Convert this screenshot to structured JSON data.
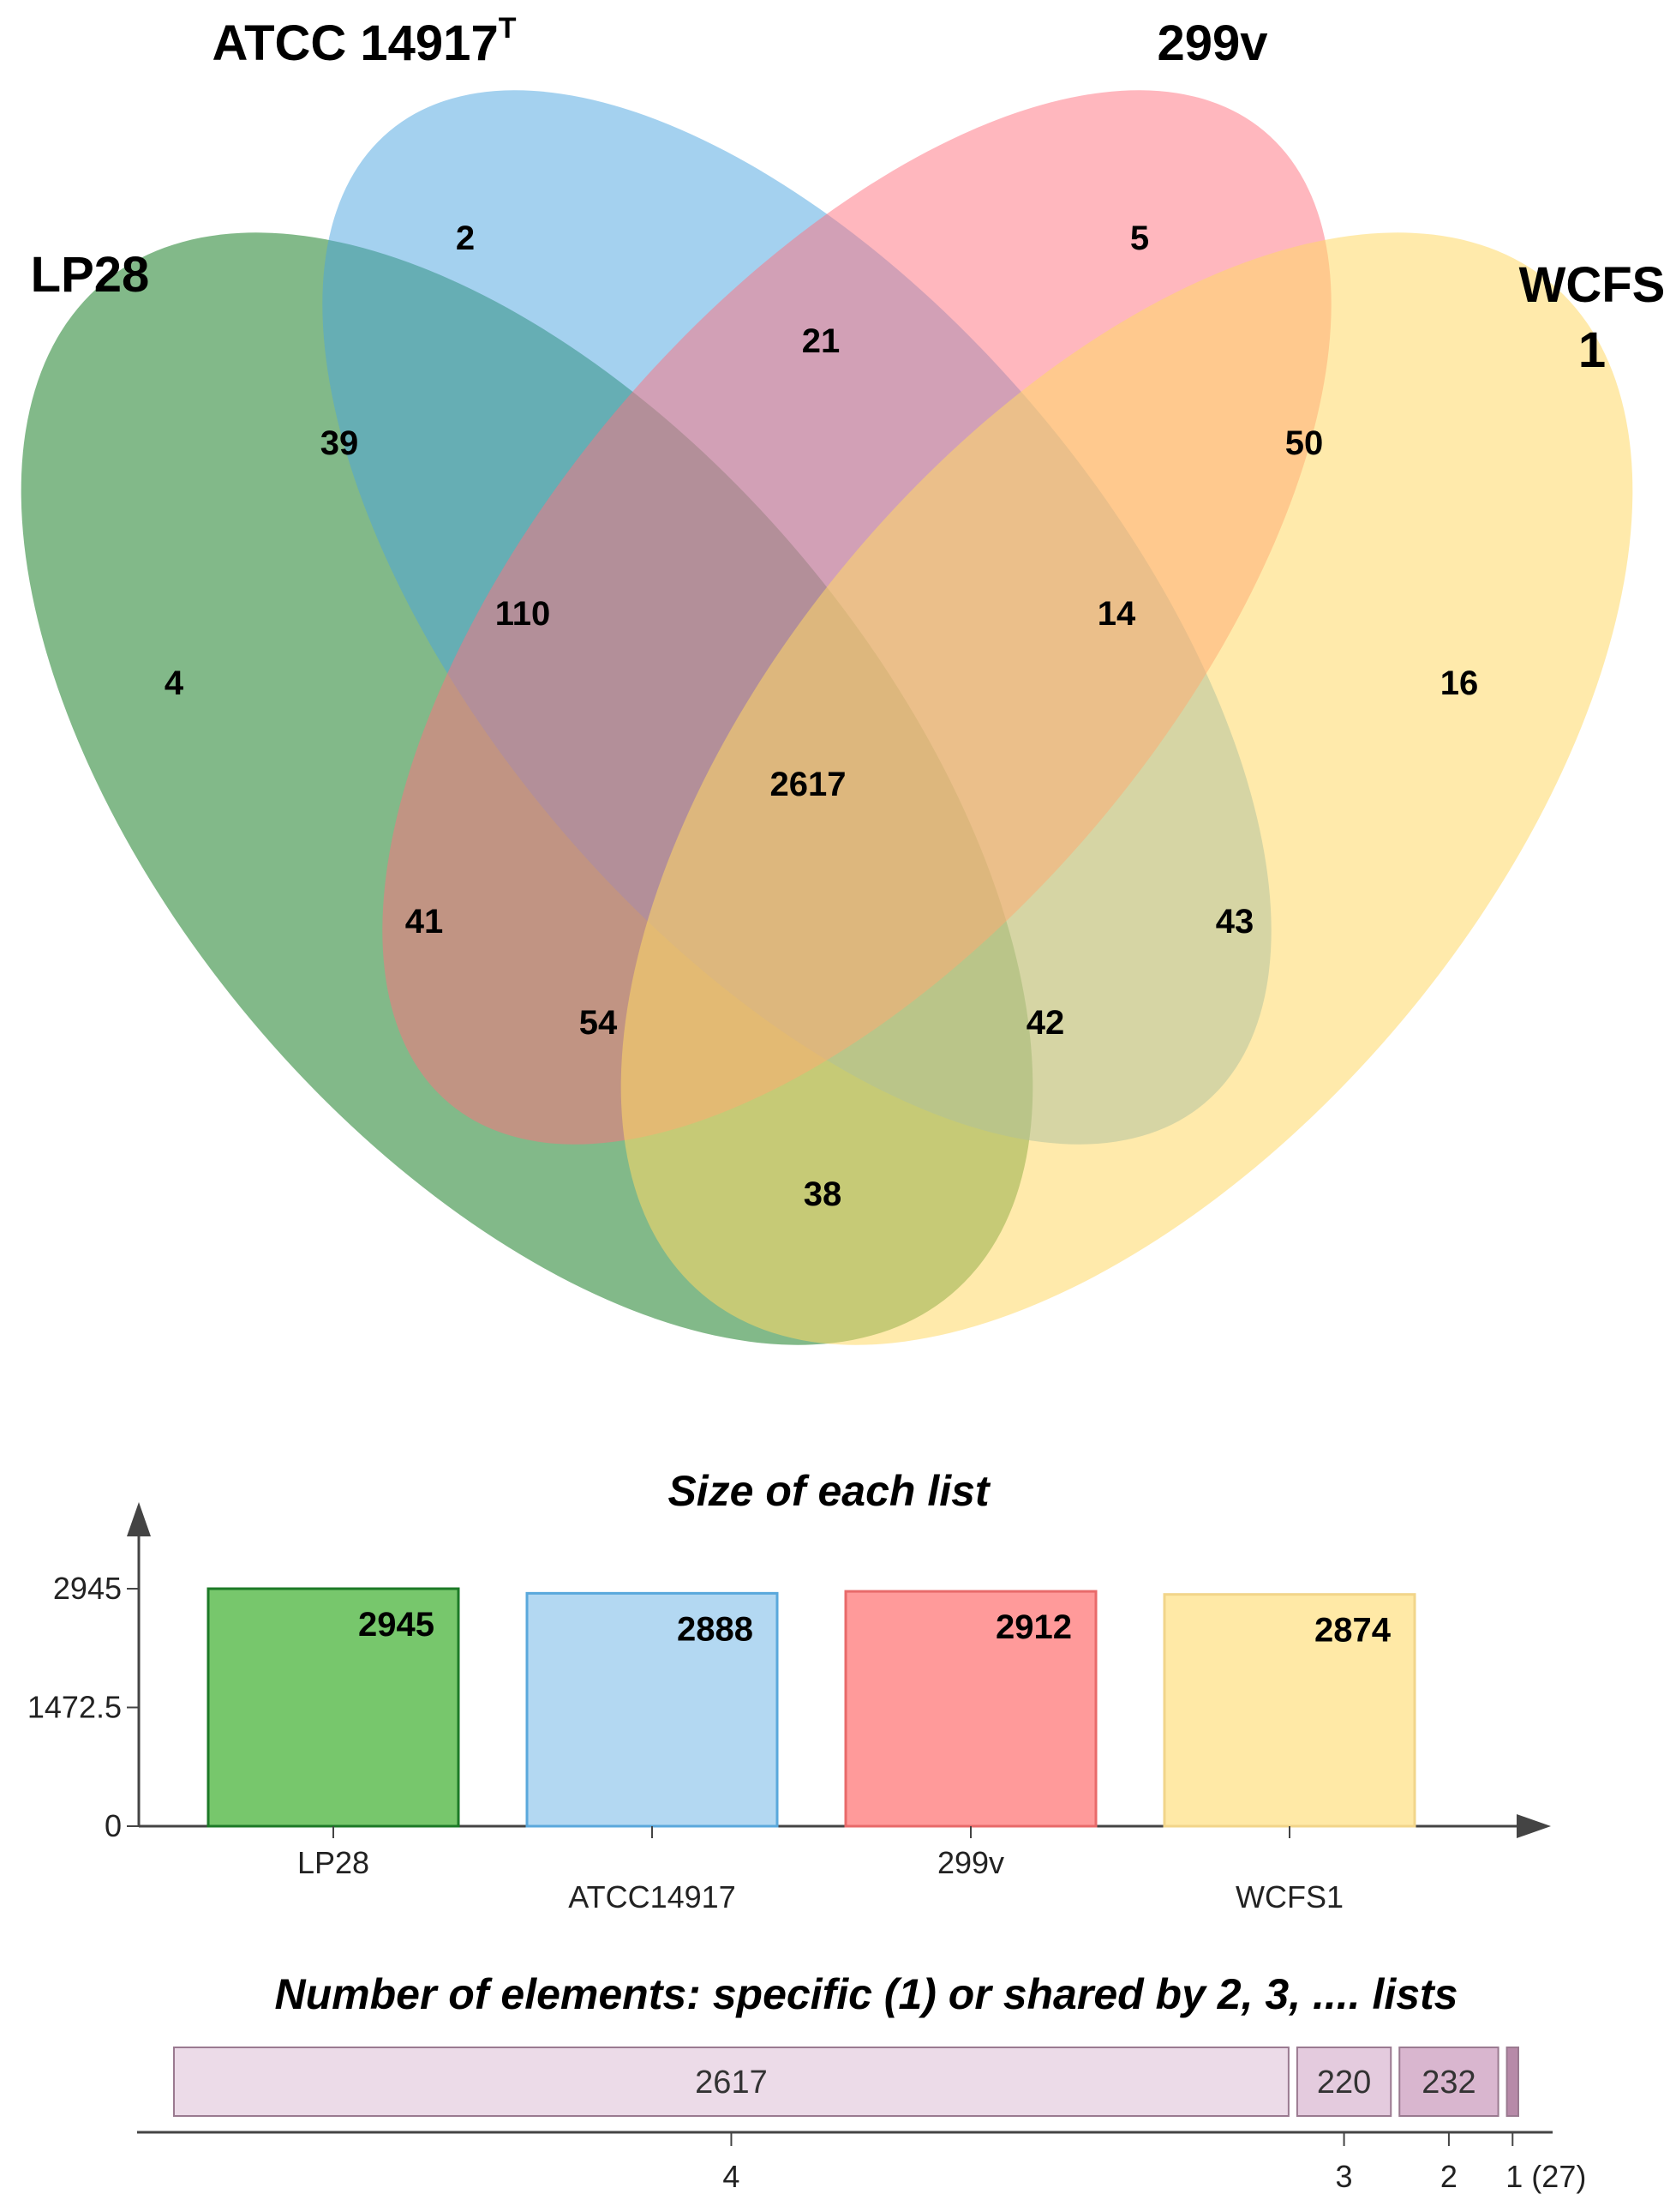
{
  "venn": {
    "sets": [
      {
        "name": "LP28",
        "color": "#2e8b3a"
      },
      {
        "name": "ATCC 14917",
        "superscript": "T",
        "color": "#4aa3df"
      },
      {
        "name": "299v",
        "color": "#ff6f7d"
      },
      {
        "name": "WCFS",
        "name_line2": "1",
        "color": "#ffd966"
      }
    ],
    "regions": [
      {
        "id": "atcc-only",
        "value": "2"
      },
      {
        "id": "299v-only",
        "value": "5"
      },
      {
        "id": "atcc-299v",
        "value": "21"
      },
      {
        "id": "lp28-atcc",
        "value": "39"
      },
      {
        "id": "299v-wcfs1",
        "value": "50"
      },
      {
        "id": "lp28-atcc-299v",
        "value": "110"
      },
      {
        "id": "atcc-299v-wcfs1",
        "value": "14"
      },
      {
        "id": "lp28-only",
        "value": "4"
      },
      {
        "id": "wcfs1-only",
        "value": "16"
      },
      {
        "id": "all-four",
        "value": "2617"
      },
      {
        "id": "lp28-299v",
        "value": "41"
      },
      {
        "id": "atcc-wcfs1",
        "value": "43"
      },
      {
        "id": "lp28-299v-wcfs1",
        "value": "54"
      },
      {
        "id": "lp28-atcc-wcfs1",
        "value": "42"
      },
      {
        "id": "lp28-wcfs1",
        "value": "38"
      }
    ]
  },
  "chart_data": [
    {
      "type": "bar",
      "title": "Size of each list",
      "categories": [
        "LP28",
        "ATCC14917",
        "299v",
        "WCFS1"
      ],
      "values": [
        2945,
        2888,
        2912,
        2874
      ],
      "value_labels": [
        "2945",
        "2888",
        "2912",
        "2874"
      ],
      "yticks": [
        "0",
        "1472.5",
        "2945"
      ],
      "ylim": [
        0,
        2945
      ],
      "colors": [
        "#77c76c",
        "#b3d8f2",
        "#ff9a9a",
        "#ffe9a6"
      ],
      "edge_colors": [
        "#1c7a27",
        "#5aa8dc",
        "#e86a6a",
        "#f2d58a"
      ],
      "grid": false
    },
    {
      "type": "bar",
      "orientation": "horizontal-stacked",
      "title_bold": "Number of elements",
      "title_rest": ": specific (1) or shared by 2, 3, .... lists",
      "segments": [
        {
          "shared_by": "4",
          "value": 2617,
          "label": "2617",
          "color": "#ecdbe8"
        },
        {
          "shared_by": "3",
          "value": 220,
          "label": "220",
          "color": "#e4cbde"
        },
        {
          "shared_by": "2",
          "value": 232,
          "label": "232",
          "color": "#d9b6cf"
        },
        {
          "shared_by": "1",
          "value": 27,
          "label": "",
          "color": "#b78aa8"
        }
      ],
      "tick_labels": [
        "4",
        "3",
        "2",
        "1 (27)"
      ]
    }
  ]
}
